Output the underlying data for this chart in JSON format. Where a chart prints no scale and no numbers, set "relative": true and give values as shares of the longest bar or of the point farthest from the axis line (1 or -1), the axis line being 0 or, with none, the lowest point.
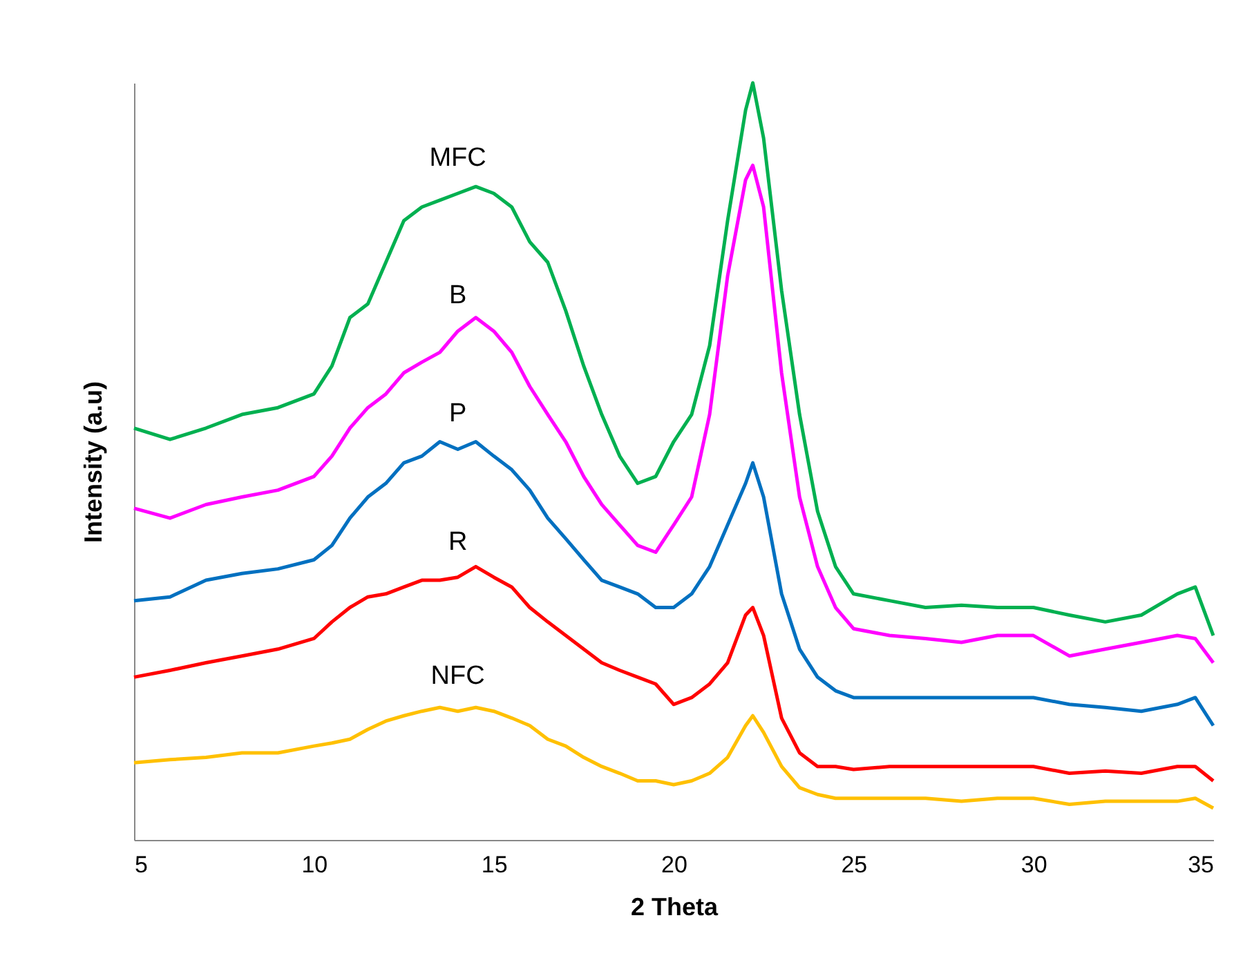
{
  "chart_data": {
    "type": "line",
    "relative": true,
    "xlabel": "2 Theta",
    "ylabel": "Intensity  (a.u)",
    "x": [
      5,
      6,
      7,
      8,
      9,
      10,
      10.5,
      11,
      11.5,
      12,
      12.5,
      13,
      13.5,
      14,
      14.5,
      15,
      15.5,
      16,
      16.5,
      17,
      17.5,
      18,
      18.5,
      19,
      19.5,
      20,
      20.5,
      21,
      21.5,
      22,
      22.2,
      22.5,
      23,
      23.5,
      24,
      24.5,
      25,
      26,
      27,
      28,
      29,
      30,
      31,
      32,
      33,
      34,
      34.5,
      35
    ],
    "xlim": [
      5,
      35
    ],
    "xticks": [
      5,
      10,
      15,
      20,
      25,
      30,
      35
    ],
    "grid": false,
    "legend": false,
    "marker": "none",
    "line_style": "solid",
    "series": [
      {
        "name": "MFC",
        "color": "#00b050",
        "values": [
          0.544,
          0.529,
          0.544,
          0.562,
          0.571,
          0.589,
          0.626,
          0.69,
          0.708,
          0.763,
          0.818,
          0.836,
          0.845,
          0.854,
          0.863,
          0.854,
          0.836,
          0.79,
          0.763,
          0.699,
          0.626,
          0.562,
          0.507,
          0.471,
          0.48,
          0.526,
          0.562,
          0.653,
          0.818,
          0.964,
          1.0,
          0.927,
          0.726,
          0.562,
          0.434,
          0.361,
          0.325,
          0.316,
          0.307,
          0.31,
          0.307,
          0.307,
          0.297,
          0.288,
          0.297,
          0.325,
          0.334,
          0.27
        ]
      },
      {
        "name": "B",
        "color": "#ff00ff",
        "values": [
          0.438,
          0.425,
          0.443,
          0.453,
          0.462,
          0.48,
          0.507,
          0.544,
          0.571,
          0.589,
          0.617,
          0.631,
          0.644,
          0.672,
          0.69,
          0.672,
          0.644,
          0.599,
          0.562,
          0.526,
          0.48,
          0.443,
          0.416,
          0.389,
          0.38,
          0.416,
          0.453,
          0.562,
          0.745,
          0.872,
          0.891,
          0.836,
          0.617,
          0.453,
          0.361,
          0.307,
          0.279,
          0.27,
          0.266,
          0.261,
          0.27,
          0.27,
          0.243,
          0.252,
          0.261,
          0.27,
          0.266,
          0.234
        ]
      },
      {
        "name": "P",
        "color": "#0070c0",
        "values": [
          0.316,
          0.321,
          0.343,
          0.352,
          0.358,
          0.37,
          0.389,
          0.425,
          0.453,
          0.471,
          0.498,
          0.507,
          0.526,
          0.516,
          0.526,
          0.507,
          0.489,
          0.462,
          0.425,
          0.398,
          0.37,
          0.343,
          0.334,
          0.325,
          0.307,
          0.307,
          0.325,
          0.361,
          0.416,
          0.471,
          0.498,
          0.453,
          0.325,
          0.252,
          0.215,
          0.197,
          0.188,
          0.188,
          0.188,
          0.188,
          0.188,
          0.188,
          0.179,
          0.175,
          0.17,
          0.179,
          0.188,
          0.151
        ]
      },
      {
        "name": "R",
        "color": "#ff0000",
        "values": [
          0.215,
          0.224,
          0.234,
          0.243,
          0.252,
          0.266,
          0.288,
          0.307,
          0.321,
          0.325,
          0.334,
          0.343,
          0.343,
          0.347,
          0.361,
          0.347,
          0.334,
          0.307,
          0.288,
          0.27,
          0.252,
          0.234,
          0.224,
          0.215,
          0.206,
          0.179,
          0.188,
          0.206,
          0.234,
          0.297,
          0.307,
          0.27,
          0.161,
          0.115,
          0.097,
          0.097,
          0.093,
          0.097,
          0.097,
          0.097,
          0.097,
          0.097,
          0.088,
          0.091,
          0.088,
          0.097,
          0.097,
          0.078
        ]
      },
      {
        "name": "NFC",
        "color": "#ffc000",
        "values": [
          0.102,
          0.106,
          0.109,
          0.115,
          0.115,
          0.124,
          0.128,
          0.133,
          0.146,
          0.157,
          0.164,
          0.17,
          0.175,
          0.17,
          0.175,
          0.17,
          0.161,
          0.151,
          0.133,
          0.124,
          0.109,
          0.097,
          0.088,
          0.078,
          0.078,
          0.073,
          0.078,
          0.088,
          0.109,
          0.151,
          0.164,
          0.142,
          0.097,
          0.069,
          0.06,
          0.055,
          0.055,
          0.055,
          0.055,
          0.051,
          0.055,
          0.055,
          0.047,
          0.051,
          0.051,
          0.051,
          0.055,
          0.042
        ]
      }
    ]
  }
}
